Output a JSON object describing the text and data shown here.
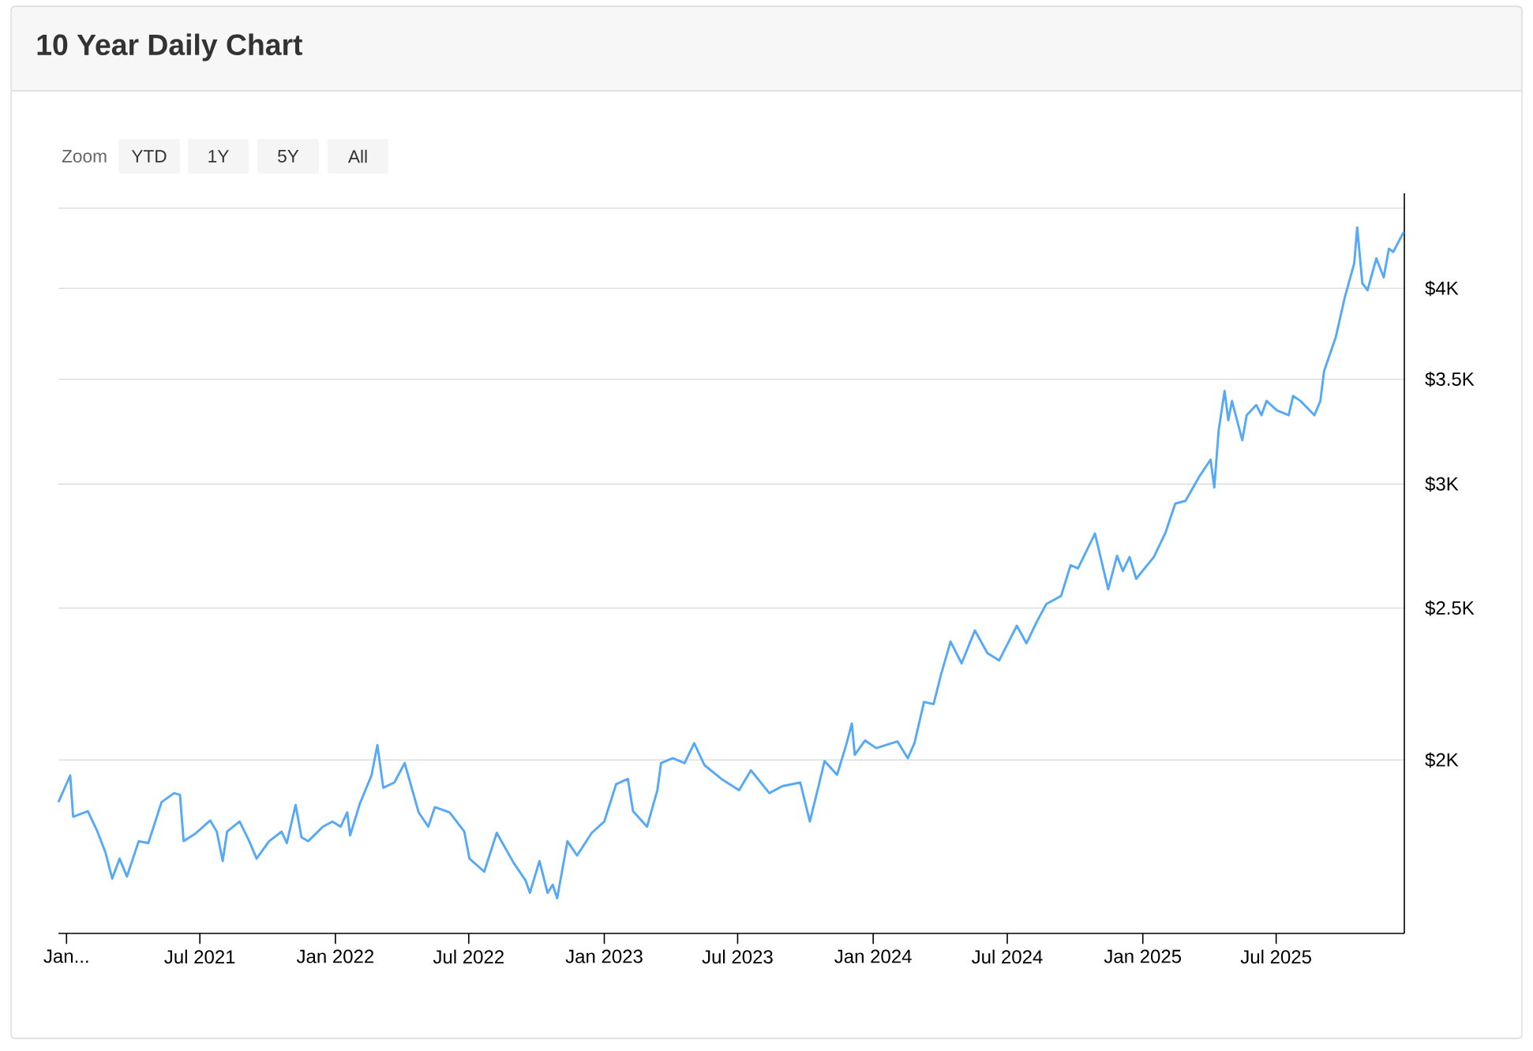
{
  "chart_data": {
    "type": "line",
    "title": "10 Year Daily Chart",
    "annotations": [
      "Zoom",
      "YTD",
      "1Y",
      "5Y",
      "All"
    ],
    "x": [
      "2020-12-21",
      "2021-01-06",
      "2021-01-10",
      "2021-01-30",
      "2021-02-12",
      "2021-02-23",
      "2021-03-04",
      "2021-03-14",
      "2021-03-24",
      "2021-04-09",
      "2021-04-22",
      "2021-05-10",
      "2021-05-27",
      "2021-06-04",
      "2021-06-09",
      "2021-06-25",
      "2021-07-15",
      "2021-07-24",
      "2021-08-01",
      "2021-08-07",
      "2021-08-24",
      "2021-09-06",
      "2021-09-16",
      "2021-10-03",
      "2021-10-20",
      "2021-10-27",
      "2021-11-08",
      "2021-11-16",
      "2021-11-25",
      "2021-12-15",
      "2021-12-28",
      "2022-01-08",
      "2022-01-17",
      "2022-01-21",
      "2022-02-03",
      "2022-02-19",
      "2022-02-27",
      "2022-03-07",
      "2022-03-22",
      "2022-04-05",
      "2022-04-24",
      "2022-05-07",
      "2022-05-16",
      "2022-06-05",
      "2022-06-25",
      "2022-07-02",
      "2022-07-22",
      "2022-08-08",
      "2022-08-31",
      "2022-09-16",
      "2022-09-22",
      "2022-10-05",
      "2022-10-16",
      "2022-10-23",
      "2022-10-29",
      "2022-11-12",
      "2022-11-25",
      "2022-12-15",
      "2023-01-01",
      "2023-01-17",
      "2023-02-02",
      "2023-02-09",
      "2023-02-28",
      "2023-03-14",
      "2023-03-19",
      "2023-04-04",
      "2023-04-20",
      "2023-05-03",
      "2023-05-17",
      "2023-06-09",
      "2023-07-03",
      "2023-07-19",
      "2023-08-13",
      "2023-08-31",
      "2023-09-24",
      "2023-10-07",
      "2023-10-20",
      "2023-10-27",
      "2023-11-13",
      "2023-11-26",
      "2023-12-03",
      "2023-12-07",
      "2023-12-21",
      "2024-01-05",
      "2024-02-03",
      "2024-02-17",
      "2024-02-26",
      "2024-03-10",
      "2024-03-23",
      "2024-04-02",
      "2024-04-15",
      "2024-04-30",
      "2024-05-18",
      "2024-06-04",
      "2024-06-20",
      "2024-07-14",
      "2024-07-27",
      "2024-08-10",
      "2024-08-23",
      "2024-09-12",
      "2024-09-25",
      "2024-10-05",
      "2024-10-28",
      "2024-11-15",
      "2024-11-27",
      "2024-12-05",
      "2024-12-14",
      "2024-12-23",
      "2025-01-16",
      "2025-02-01",
      "2025-02-14",
      "2025-02-28",
      "2025-03-18",
      "2025-04-03",
      "2025-04-08",
      "2025-04-14",
      "2025-04-22",
      "2025-04-27",
      "2025-05-02",
      "2025-05-16",
      "2025-05-22",
      "2025-06-04",
      "2025-06-11",
      "2025-06-18",
      "2025-07-02",
      "2025-07-18",
      "2025-07-24",
      "2025-08-03",
      "2025-08-22",
      "2025-08-30",
      "2025-09-04",
      "2025-09-20",
      "2025-10-02",
      "2025-10-15",
      "2025-10-19",
      "2025-10-26",
      "2025-11-02",
      "2025-11-14",
      "2025-11-24",
      "2025-12-01",
      "2025-12-07",
      "2025-12-21"
    ],
    "series": [
      {
        "color": "#56a9f4",
        "values": [
          1880,
          1955,
          1840,
          1855,
          1800,
          1745,
          1680,
          1730,
          1685,
          1775,
          1770,
          1880,
          1905,
          1900,
          1775,
          1795,
          1830,
          1800,
          1724,
          1800,
          1827,
          1775,
          1730,
          1775,
          1800,
          1770,
          1872,
          1785,
          1775,
          1813,
          1827,
          1813,
          1852,
          1790,
          1875,
          1955,
          2044,
          1920,
          1935,
          1991,
          1852,
          1813,
          1866,
          1852,
          1800,
          1730,
          1697,
          1797,
          1719,
          1676,
          1645,
          1724,
          1645,
          1665,
          1632,
          1775,
          1738,
          1797,
          1827,
          1930,
          1945,
          1855,
          1813,
          1913,
          1991,
          2005,
          1991,
          2050,
          1985,
          1945,
          1913,
          1970,
          1905,
          1925,
          1935,
          1827,
          1935,
          1997,
          1957,
          2050,
          2110,
          2015,
          2058,
          2035,
          2055,
          2005,
          2050,
          2178,
          2171,
          2267,
          2380,
          2305,
          2419,
          2340,
          2315,
          2436,
          2374,
          2450,
          2515,
          2545,
          2663,
          2650,
          2790,
          2570,
          2700,
          2640,
          2695,
          2610,
          2695,
          2795,
          2915,
          2927,
          3030,
          3110,
          2985,
          3248,
          3440,
          3295,
          3390,
          3200,
          3320,
          3370,
          3320,
          3390,
          3343,
          3320,
          3415,
          3390,
          3320,
          3390,
          3541,
          3725,
          3945,
          4150,
          4375,
          4030,
          3990,
          4180,
          4065,
          4240,
          4220,
          4345
        ]
      }
    ],
    "xlim": [
      "2020-12-21",
      "2025-12-22"
    ],
    "xticks": [
      {
        "value": "2021-01-01",
        "label": "Jan..."
      },
      {
        "value": "2021-07-01",
        "label": "Jul 2021"
      },
      {
        "value": "2022-01-01",
        "label": "Jan 2022"
      },
      {
        "value": "2022-07-01",
        "label": "Jul 2022"
      },
      {
        "value": "2023-01-01",
        "label": "Jan 2023"
      },
      {
        "value": "2023-07-01",
        "label": "Jul 2023"
      },
      {
        "value": "2024-01-01",
        "label": "Jan 2024"
      },
      {
        "value": "2024-07-01",
        "label": "Jul 2024"
      },
      {
        "value": "2025-01-01",
        "label": "Jan 2025"
      },
      {
        "value": "2025-07-01",
        "label": "Jul 2025"
      }
    ],
    "ylim": [
      1550,
      4600
    ],
    "yticks": [
      {
        "value": 2000,
        "label": "$2K"
      },
      {
        "value": 2500,
        "label": "$2.5K"
      },
      {
        "value": 3000,
        "label": "$3K"
      },
      {
        "value": 3500,
        "label": "$3.5K"
      },
      {
        "value": 4000,
        "label": "$4K"
      },
      {
        "value": 4500,
        "label": null
      }
    ],
    "log": "y",
    "grid": "y",
    "marker": "none",
    "line_style": "solid"
  }
}
